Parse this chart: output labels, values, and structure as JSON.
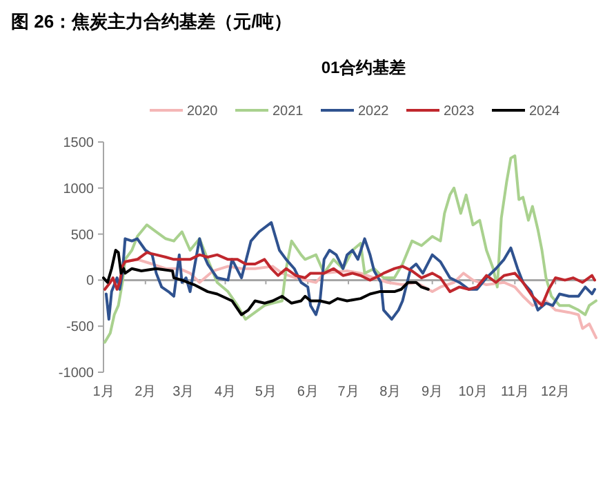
{
  "chart_data": {
    "type": "line",
    "title": "图 26：焦炭主力合约基差（元/吨）",
    "subtitle": "01合约基差",
    "legend": "top",
    "xlim": [
      "--01-01",
      "--12-31"
    ],
    "xticks": [
      {
        "value": "--01-01",
        "label": "1月"
      },
      {
        "value": "--02-01",
        "label": "2月"
      },
      {
        "value": "--03-01",
        "label": "3月"
      },
      {
        "value": "--04-01",
        "label": "4月"
      },
      {
        "value": "--05-01",
        "label": "5月"
      },
      {
        "value": "--06-01",
        "label": "6月"
      },
      {
        "value": "--07-01",
        "label": "7月"
      },
      {
        "value": "--08-01",
        "label": "8月"
      },
      {
        "value": "--09-01",
        "label": "9月"
      },
      {
        "value": "--10-01",
        "label": "10月"
      },
      {
        "value": "--11-01",
        "label": "11月"
      },
      {
        "value": "--12-01",
        "label": "12月"
      }
    ],
    "ylim": [
      -1000,
      1500
    ],
    "yticks": [
      -1000,
      -500,
      0,
      500,
      1000,
      1500
    ],
    "series": [
      {
        "name": "2020",
        "color": "#f4b6b6",
        "x": [
          "--01-16",
          "--01-26",
          "--02-06",
          "--02-16",
          "--02-26",
          "--03-06",
          "--03-13",
          "--03-23",
          "--04-03",
          "--04-13",
          "--04-23",
          "--05-06",
          "--05-13",
          "--05-23",
          "--06-07",
          "--06-13",
          "--06-30",
          "--07-10",
          "--07-20",
          "--07-30",
          "--08-10",
          "--08-20",
          "--09-01",
          "--09-07",
          "--09-17",
          "--09-24",
          "--10-01",
          "--10-11",
          "--10-24",
          "--11-01",
          "--11-07",
          "--11-14",
          "--11-24",
          "--12-01",
          "--12-11",
          "--12-18",
          "--12-21",
          "--12-26",
          "--12-31"
        ],
        "values": [
          200,
          225,
          175,
          125,
          125,
          75,
          -25,
          100,
          150,
          125,
          125,
          150,
          75,
          25,
          -25,
          75,
          100,
          75,
          25,
          -25,
          -50,
          -25,
          -125,
          -75,
          -25,
          75,
          0,
          -50,
          -25,
          -75,
          -175,
          -275,
          -225,
          -325,
          -350,
          -375,
          -525,
          -475,
          -625
        ]
      },
      {
        "name": "2021",
        "color": "#a9d18e",
        "x": [
          "--01-02",
          "--01-06",
          "--01-09",
          "--01-12",
          "--01-15",
          "--01-17",
          "--01-22",
          "--01-26",
          "--02-02",
          "--02-09",
          "--02-16",
          "--02-22",
          "--02-28",
          "--03-06",
          "--03-13",
          "--03-19",
          "--03-26",
          "--04-03",
          "--04-10",
          "--04-16",
          "--04-23",
          "--04-30",
          "--05-06",
          "--05-13",
          "--05-16",
          "--05-20",
          "--05-27",
          "--05-30",
          "--06-07",
          "--06-13",
          "--06-20",
          "--06-27",
          "--07-04",
          "--07-10",
          "--07-13",
          "--07-20",
          "--07-27",
          "--08-04",
          "--08-10",
          "--08-17",
          "--08-24",
          "--09-01",
          "--09-07",
          "--09-10",
          "--09-14",
          "--09-17",
          "--09-22",
          "--09-26",
          "--10-01",
          "--10-06",
          "--10-11",
          "--10-16",
          "--10-19",
          "--10-22",
          "--10-26",
          "--10-29",
          "--11-01",
          "--11-04",
          "--11-07",
          "--11-11",
          "--11-14",
          "--11-18",
          "--11-21",
          "--11-24",
          "--11-28",
          "--12-04",
          "--12-11",
          "--12-18",
          "--12-23",
          "--12-26",
          "--12-31"
        ],
        "values": [
          -675,
          -575,
          -375,
          -275,
          -25,
          225,
          325,
          475,
          600,
          525,
          450,
          425,
          525,
          325,
          450,
          225,
          -25,
          -125,
          -275,
          -425,
          -350,
          -275,
          -250,
          -225,
          125,
          425,
          275,
          225,
          275,
          75,
          225,
          125,
          325,
          400,
          75,
          125,
          25,
          25,
          175,
          425,
          375,
          475,
          425,
          725,
          925,
          1000,
          725,
          925,
          600,
          650,
          325,
          125,
          -75,
          675,
          1075,
          1325,
          1350,
          875,
          900,
          650,
          800,
          550,
          325,
          25,
          -175,
          -275,
          -275,
          -325,
          -375,
          -275,
          -225
        ]
      },
      {
        "name": "2022",
        "color": "#2f528f",
        "x": [
          "--01-03",
          "--01-05",
          "--01-07",
          "--01-11",
          "--01-13",
          "--01-15",
          "--01-17",
          "--01-22",
          "--01-26",
          "--02-01",
          "--02-06",
          "--02-09",
          "--02-13",
          "--02-18",
          "--02-22",
          "--02-26",
          "--02-28",
          "--03-03",
          "--03-06",
          "--03-09",
          "--03-13",
          "--03-16",
          "--03-19",
          "--03-26",
          "--04-03",
          "--04-06",
          "--04-13",
          "--04-20",
          "--04-26",
          "--05-05",
          "--05-08",
          "--05-11",
          "--05-16",
          "--05-22",
          "--05-27",
          "--06-01",
          "--06-03",
          "--06-07",
          "--06-10",
          "--06-13",
          "--06-17",
          "--06-22",
          "--06-27",
          "--06-30",
          "--07-04",
          "--07-08",
          "--07-13",
          "--07-17",
          "--07-20",
          "--07-25",
          "--07-27",
          "--08-02",
          "--08-07",
          "--08-10",
          "--08-16",
          "--08-20",
          "--08-25",
          "--09-01",
          "--09-07",
          "--09-14",
          "--09-21",
          "--09-28",
          "--10-04",
          "--10-11",
          "--10-18",
          "--10-24",
          "--10-29",
          "--11-03",
          "--11-07",
          "--11-13",
          "--11-18",
          "--11-24",
          "--11-29",
          "--12-04",
          "--12-11",
          "--12-18",
          "--12-23",
          "--12-28",
          "--12-30"
        ],
        "values": [
          -150,
          -425,
          -125,
          25,
          -100,
          75,
          450,
          425,
          450,
          325,
          275,
          75,
          -75,
          -125,
          -175,
          275,
          -25,
          25,
          -125,
          125,
          450,
          275,
          175,
          25,
          0,
          225,
          25,
          425,
          525,
          625,
          475,
          325,
          225,
          125,
          -25,
          -75,
          -275,
          -375,
          -225,
          225,
          325,
          275,
          125,
          275,
          325,
          225,
          450,
          275,
          100,
          -25,
          -325,
          -425,
          -325,
          -225,
          125,
          175,
          75,
          275,
          200,
          25,
          -25,
          -100,
          -100,
          25,
          125,
          225,
          350,
          125,
          -25,
          -125,
          -325,
          -250,
          -275,
          -150,
          -175,
          -175,
          -75,
          -150,
          -100
        ]
      },
      {
        "name": "2023",
        "color": "#c0272d",
        "x": [
          "--01-02",
          "--01-06",
          "--01-08",
          "--01-11",
          "--01-13",
          "--01-15",
          "--01-17",
          "--01-26",
          "--02-02",
          "--02-09",
          "--02-16",
          "--02-22",
          "--02-28",
          "--03-06",
          "--03-13",
          "--03-19",
          "--03-26",
          "--04-03",
          "--04-10",
          "--04-16",
          "--04-23",
          "--04-30",
          "--05-05",
          "--05-10",
          "--05-16",
          "--05-23",
          "--05-30",
          "--06-03",
          "--06-13",
          "--06-20",
          "--06-27",
          "--07-04",
          "--07-10",
          "--07-17",
          "--07-24",
          "--07-27",
          "--08-04",
          "--08-10",
          "--08-17",
          "--08-24",
          "--09-01",
          "--09-07",
          "--09-14",
          "--09-21",
          "--09-28",
          "--10-04",
          "--10-11",
          "--10-18",
          "--10-24",
          "--11-01",
          "--11-07",
          "--11-14",
          "--11-21",
          "--11-26",
          "--12-01",
          "--12-08",
          "--12-14",
          "--12-21",
          "--12-28",
          "--12-30"
        ],
        "values": [
          -100,
          -25,
          25,
          -100,
          -25,
          150,
          200,
          225,
          300,
          275,
          250,
          225,
          225,
          225,
          275,
          250,
          275,
          225,
          225,
          175,
          175,
          225,
          125,
          50,
          125,
          50,
          25,
          75,
          75,
          125,
          50,
          75,
          50,
          0,
          50,
          75,
          125,
          150,
          100,
          25,
          75,
          25,
          -125,
          -75,
          -100,
          -75,
          50,
          -25,
          50,
          75,
          -25,
          -175,
          -275,
          -100,
          25,
          0,
          25,
          -25,
          50,
          0
        ]
      },
      {
        "name": "2024",
        "color": "#000000",
        "x": [
          "--01-01",
          "--01-04",
          "--01-07",
          "--01-10",
          "--01-12",
          "--01-14",
          "--01-16",
          "--01-17",
          "--01-22",
          "--01-29",
          "--02-09",
          "--02-21",
          "--02-22",
          "--02-28",
          "--03-09",
          "--03-19",
          "--03-26",
          "--04-06",
          "--04-13",
          "--04-18",
          "--04-23",
          "--04-30",
          "--05-06",
          "--05-13",
          "--05-20",
          "--05-27",
          "--05-30",
          "--06-03",
          "--06-10",
          "--06-17",
          "--06-23",
          "--06-30",
          "--07-10",
          "--07-17",
          "--07-24",
          "--08-04",
          "--08-09",
          "--08-14",
          "--08-20",
          "--08-24",
          "--08-29"
        ],
        "values": [
          25,
          -25,
          125,
          325,
          300,
          75,
          125,
          75,
          125,
          100,
          125,
          100,
          25,
          0,
          -50,
          -125,
          -150,
          -225,
          -375,
          -325,
          -225,
          -250,
          -225,
          -175,
          -250,
          -225,
          -175,
          -225,
          -225,
          -250,
          -200,
          -225,
          -200,
          -150,
          -125,
          -125,
          -100,
          -25,
          -25,
          -75,
          -100
        ]
      }
    ]
  }
}
